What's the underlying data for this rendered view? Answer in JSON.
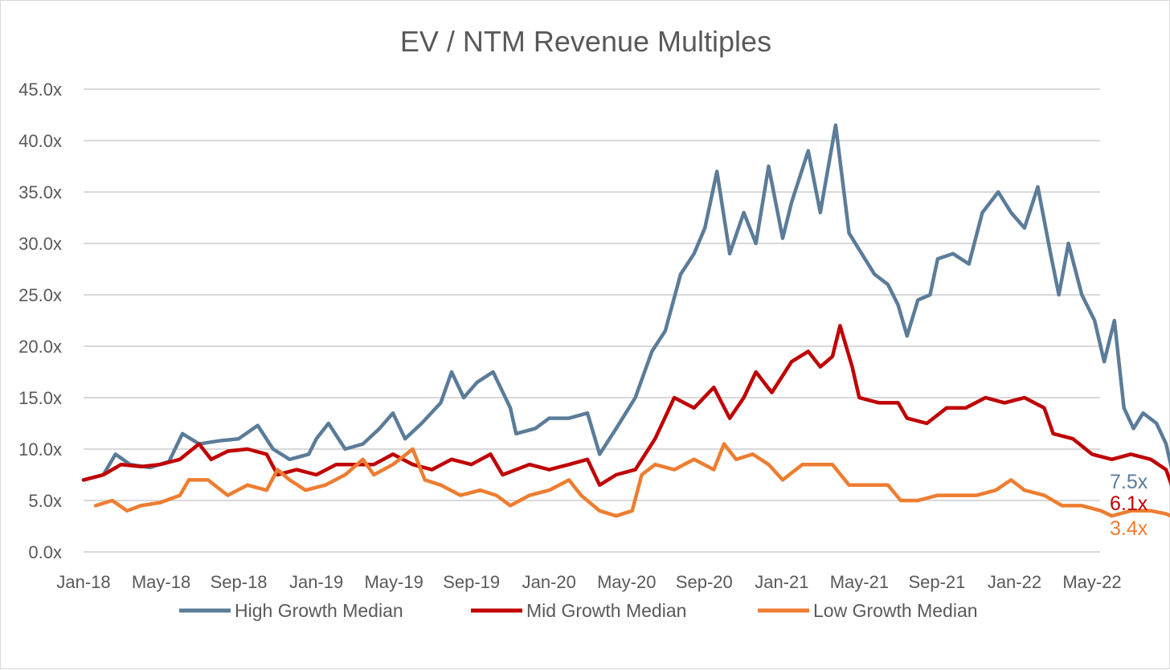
{
  "chart_data": {
    "type": "line",
    "title": "EV / NTM Revenue Multiples",
    "xlabel": "",
    "ylabel": "",
    "ylim": [
      0,
      45
    ],
    "y_ticks": [
      "0.0x",
      "5.0x",
      "10.0x",
      "15.0x",
      "20.0x",
      "25.0x",
      "30.0x",
      "35.0x",
      "40.0x",
      "45.0x"
    ],
    "x_ticks": [
      "Jan-18",
      "May-18",
      "Sep-18",
      "Jan-19",
      "May-19",
      "Sep-19",
      "Jan-20",
      "May-20",
      "Sep-20",
      "Jan-21",
      "May-21",
      "Sep-21",
      "Jan-22",
      "May-22"
    ],
    "grid": "horizontal",
    "legend_position": "bottom",
    "series": [
      {
        "name": "High Growth Median",
        "color": "#5b7c99",
        "end_label": "7.5x",
        "points": [
          [
            "2018-01-01",
            7.0
          ],
          [
            "2018-02-01",
            7.5
          ],
          [
            "2018-02-20",
            9.5
          ],
          [
            "2018-03-15",
            8.5
          ],
          [
            "2018-04-15",
            8.2
          ],
          [
            "2018-05-15",
            8.8
          ],
          [
            "2018-06-05",
            11.5
          ],
          [
            "2018-07-01",
            10.5
          ],
          [
            "2018-08-01",
            10.8
          ],
          [
            "2018-09-01",
            11.0
          ],
          [
            "2018-10-01",
            12.3
          ],
          [
            "2018-10-25",
            10.0
          ],
          [
            "2018-11-20",
            9.0
          ],
          [
            "2018-12-20",
            9.5
          ],
          [
            "2019-01-01",
            11.0
          ],
          [
            "2019-01-20",
            12.5
          ],
          [
            "2019-02-15",
            10.0
          ],
          [
            "2019-03-15",
            10.5
          ],
          [
            "2019-04-10",
            12.0
          ],
          [
            "2019-05-01",
            13.5
          ],
          [
            "2019-05-20",
            11.0
          ],
          [
            "2019-06-15",
            12.5
          ],
          [
            "2019-07-15",
            14.5
          ],
          [
            "2019-08-01",
            17.5
          ],
          [
            "2019-08-20",
            15.0
          ],
          [
            "2019-09-10",
            16.5
          ],
          [
            "2019-10-05",
            17.5
          ],
          [
            "2019-11-01",
            14.0
          ],
          [
            "2019-11-10",
            11.5
          ],
          [
            "2019-12-10",
            12.0
          ],
          [
            "2020-01-01",
            13.0
          ],
          [
            "2020-02-01",
            13.0
          ],
          [
            "2020-03-01",
            13.5
          ],
          [
            "2020-03-20",
            9.5
          ],
          [
            "2020-04-15",
            12.0
          ],
          [
            "2020-05-15",
            15.0
          ],
          [
            "2020-06-10",
            19.5
          ],
          [
            "2020-07-01",
            21.5
          ],
          [
            "2020-07-25",
            27.0
          ],
          [
            "2020-08-15",
            29.0
          ],
          [
            "2020-09-01",
            31.5
          ],
          [
            "2020-09-20",
            37.0
          ],
          [
            "2020-10-10",
            29.0
          ],
          [
            "2020-11-01",
            33.0
          ],
          [
            "2020-11-20",
            30.0
          ],
          [
            "2020-12-10",
            37.5
          ],
          [
            "2021-01-01",
            30.5
          ],
          [
            "2021-01-15",
            34.0
          ],
          [
            "2021-02-10",
            39.0
          ],
          [
            "2021-03-01",
            33.0
          ],
          [
            "2021-03-25",
            41.5
          ],
          [
            "2021-04-15",
            31.0
          ],
          [
            "2021-05-05",
            29.0
          ],
          [
            "2021-05-25",
            27.0
          ],
          [
            "2021-06-15",
            26.0
          ],
          [
            "2021-07-01",
            24.0
          ],
          [
            "2021-07-15",
            21.0
          ],
          [
            "2021-08-01",
            24.5
          ],
          [
            "2021-08-20",
            25.0
          ],
          [
            "2021-09-01",
            28.5
          ],
          [
            "2021-09-25",
            29.0
          ],
          [
            "2021-10-20",
            28.0
          ],
          [
            "2021-11-10",
            33.0
          ],
          [
            "2021-12-05",
            35.0
          ],
          [
            "2021-12-25",
            33.0
          ],
          [
            "2022-01-15",
            31.5
          ],
          [
            "2022-02-05",
            35.5
          ],
          [
            "2022-02-25",
            29.0
          ],
          [
            "2022-03-10",
            25.0
          ],
          [
            "2022-03-25",
            30.0
          ],
          [
            "2022-04-15",
            25.0
          ],
          [
            "2022-05-05",
            22.5
          ],
          [
            "2022-05-20",
            18.5
          ],
          [
            "2022-06-05",
            22.5
          ],
          [
            "2022-06-20",
            14.0
          ],
          [
            "2022-07-05",
            12.0
          ],
          [
            "2022-07-20",
            13.5
          ],
          [
            "2022-08-10",
            12.5
          ],
          [
            "2022-08-25",
            10.5
          ],
          [
            "2022-09-05",
            7.5
          ]
        ]
      },
      {
        "name": "Mid Growth Median",
        "color": "#c00000",
        "end_label": "6.1x",
        "points": [
          [
            "2018-01-01",
            7.0
          ],
          [
            "2018-02-01",
            7.5
          ],
          [
            "2018-03-01",
            8.5
          ],
          [
            "2018-04-01",
            8.3
          ],
          [
            "2018-05-01",
            8.5
          ],
          [
            "2018-06-01",
            9.0
          ],
          [
            "2018-07-01",
            10.5
          ],
          [
            "2018-07-20",
            9.0
          ],
          [
            "2018-08-15",
            9.8
          ],
          [
            "2018-09-15",
            10.0
          ],
          [
            "2018-10-15",
            9.5
          ],
          [
            "2018-11-01",
            7.5
          ],
          [
            "2018-12-01",
            8.0
          ],
          [
            "2019-01-01",
            7.5
          ],
          [
            "2019-02-01",
            8.5
          ],
          [
            "2019-03-01",
            8.5
          ],
          [
            "2019-04-01",
            8.5
          ],
          [
            "2019-05-01",
            9.5
          ],
          [
            "2019-06-01",
            8.5
          ],
          [
            "2019-07-01",
            8.0
          ],
          [
            "2019-08-01",
            9.0
          ],
          [
            "2019-09-01",
            8.5
          ],
          [
            "2019-10-01",
            9.5
          ],
          [
            "2019-10-20",
            7.5
          ],
          [
            "2019-12-01",
            8.5
          ],
          [
            "2020-01-01",
            8.0
          ],
          [
            "2020-02-01",
            8.5
          ],
          [
            "2020-03-01",
            9.0
          ],
          [
            "2020-03-20",
            6.5
          ],
          [
            "2020-04-15",
            7.5
          ],
          [
            "2020-05-15",
            8.0
          ],
          [
            "2020-06-15",
            11.0
          ],
          [
            "2020-07-15",
            15.0
          ],
          [
            "2020-08-15",
            14.0
          ],
          [
            "2020-09-15",
            16.0
          ],
          [
            "2020-10-10",
            13.0
          ],
          [
            "2020-11-01",
            15.0
          ],
          [
            "2020-11-20",
            17.5
          ],
          [
            "2020-12-15",
            15.5
          ],
          [
            "2021-01-15",
            18.5
          ],
          [
            "2021-02-10",
            19.5
          ],
          [
            "2021-03-01",
            18.0
          ],
          [
            "2021-03-20",
            19.0
          ],
          [
            "2021-04-01",
            22.0
          ],
          [
            "2021-04-20",
            18.0
          ],
          [
            "2021-05-01",
            15.0
          ],
          [
            "2021-06-01",
            14.5
          ],
          [
            "2021-07-01",
            14.5
          ],
          [
            "2021-07-15",
            13.0
          ],
          [
            "2021-08-15",
            12.5
          ],
          [
            "2021-09-15",
            14.0
          ],
          [
            "2021-10-15",
            14.0
          ],
          [
            "2021-11-15",
            15.0
          ],
          [
            "2021-12-15",
            14.5
          ],
          [
            "2022-01-15",
            15.0
          ],
          [
            "2022-02-15",
            14.0
          ],
          [
            "2022-03-01",
            11.5
          ],
          [
            "2022-04-01",
            11.0
          ],
          [
            "2022-05-01",
            9.5
          ],
          [
            "2022-06-01",
            9.0
          ],
          [
            "2022-07-01",
            9.5
          ],
          [
            "2022-08-01",
            9.0
          ],
          [
            "2022-08-25",
            8.0
          ],
          [
            "2022-09-05",
            6.1
          ]
        ]
      },
      {
        "name": "Low Growth Median",
        "color": "#ed7d31",
        "end_label": "3.4x",
        "points": [
          [
            "2018-01-20",
            4.5
          ],
          [
            "2018-02-15",
            5.0
          ],
          [
            "2018-03-10",
            4.0
          ],
          [
            "2018-04-01",
            4.5
          ],
          [
            "2018-05-01",
            4.8
          ],
          [
            "2018-06-01",
            5.5
          ],
          [
            "2018-06-15",
            7.0
          ],
          [
            "2018-07-15",
            7.0
          ],
          [
            "2018-08-15",
            5.5
          ],
          [
            "2018-09-15",
            6.5
          ],
          [
            "2018-10-15",
            6.0
          ],
          [
            "2018-11-01",
            8.0
          ],
          [
            "2018-11-20",
            7.0
          ],
          [
            "2018-12-15",
            6.0
          ],
          [
            "2019-01-15",
            6.5
          ],
          [
            "2019-02-15",
            7.5
          ],
          [
            "2019-03-15",
            9.0
          ],
          [
            "2019-04-01",
            7.5
          ],
          [
            "2019-05-01",
            8.5
          ],
          [
            "2019-06-01",
            10.0
          ],
          [
            "2019-06-20",
            7.0
          ],
          [
            "2019-07-15",
            6.5
          ],
          [
            "2019-08-15",
            5.5
          ],
          [
            "2019-09-15",
            6.0
          ],
          [
            "2019-10-10",
            5.5
          ],
          [
            "2019-11-01",
            4.5
          ],
          [
            "2019-12-01",
            5.5
          ],
          [
            "2020-01-01",
            6.0
          ],
          [
            "2020-02-01",
            7.0
          ],
          [
            "2020-02-20",
            5.5
          ],
          [
            "2020-03-20",
            4.0
          ],
          [
            "2020-04-15",
            3.5
          ],
          [
            "2020-05-10",
            4.0
          ],
          [
            "2020-05-25",
            7.5
          ],
          [
            "2020-06-15",
            8.5
          ],
          [
            "2020-07-15",
            8.0
          ],
          [
            "2020-08-15",
            9.0
          ],
          [
            "2020-09-15",
            8.0
          ],
          [
            "2020-10-01",
            10.5
          ],
          [
            "2020-10-20",
            9.0
          ],
          [
            "2020-11-15",
            9.5
          ],
          [
            "2020-12-10",
            8.5
          ],
          [
            "2021-01-01",
            7.0
          ],
          [
            "2021-02-01",
            8.5
          ],
          [
            "2021-03-01",
            8.5
          ],
          [
            "2021-03-20",
            8.5
          ],
          [
            "2021-04-15",
            6.5
          ],
          [
            "2021-05-15",
            6.5
          ],
          [
            "2021-06-15",
            6.5
          ],
          [
            "2021-07-05",
            5.0
          ],
          [
            "2021-08-01",
            5.0
          ],
          [
            "2021-09-01",
            5.5
          ],
          [
            "2021-10-01",
            5.5
          ],
          [
            "2021-11-01",
            5.5
          ],
          [
            "2021-12-01",
            6.0
          ],
          [
            "2021-12-25",
            7.0
          ],
          [
            "2022-01-15",
            6.0
          ],
          [
            "2022-02-15",
            5.5
          ],
          [
            "2022-03-15",
            4.5
          ],
          [
            "2022-04-15",
            4.5
          ],
          [
            "2022-05-15",
            4.0
          ],
          [
            "2022-06-01",
            3.5
          ],
          [
            "2022-07-01",
            4.0
          ],
          [
            "2022-08-01",
            4.0
          ],
          [
            "2022-08-25",
            3.7
          ],
          [
            "2022-09-05",
            3.4
          ]
        ]
      }
    ]
  }
}
